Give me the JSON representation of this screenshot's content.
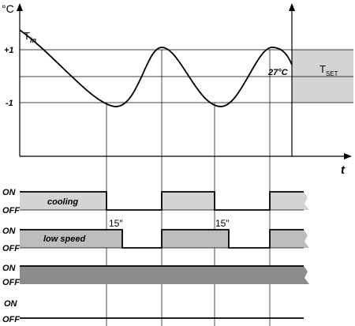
{
  "axis": {
    "y_unit": "°C",
    "x_label": "t",
    "plus": "+1",
    "minus": "-1"
  },
  "curve": {
    "label": {
      "main": "T",
      "sub": "in"
    },
    "set_value": "27°C",
    "set_label": {
      "main": "T",
      "sub": "SET"
    }
  },
  "rows": [
    {
      "on": "ON",
      "off": "OFF",
      "label": "cooling"
    },
    {
      "on": "ON",
      "off": "OFF",
      "label": "low speed",
      "delays": [
        "15\"",
        "15\""
      ]
    },
    {
      "on": "ON",
      "off": "OFF"
    },
    {
      "on": "ON",
      "off": "OFF"
    }
  ]
}
